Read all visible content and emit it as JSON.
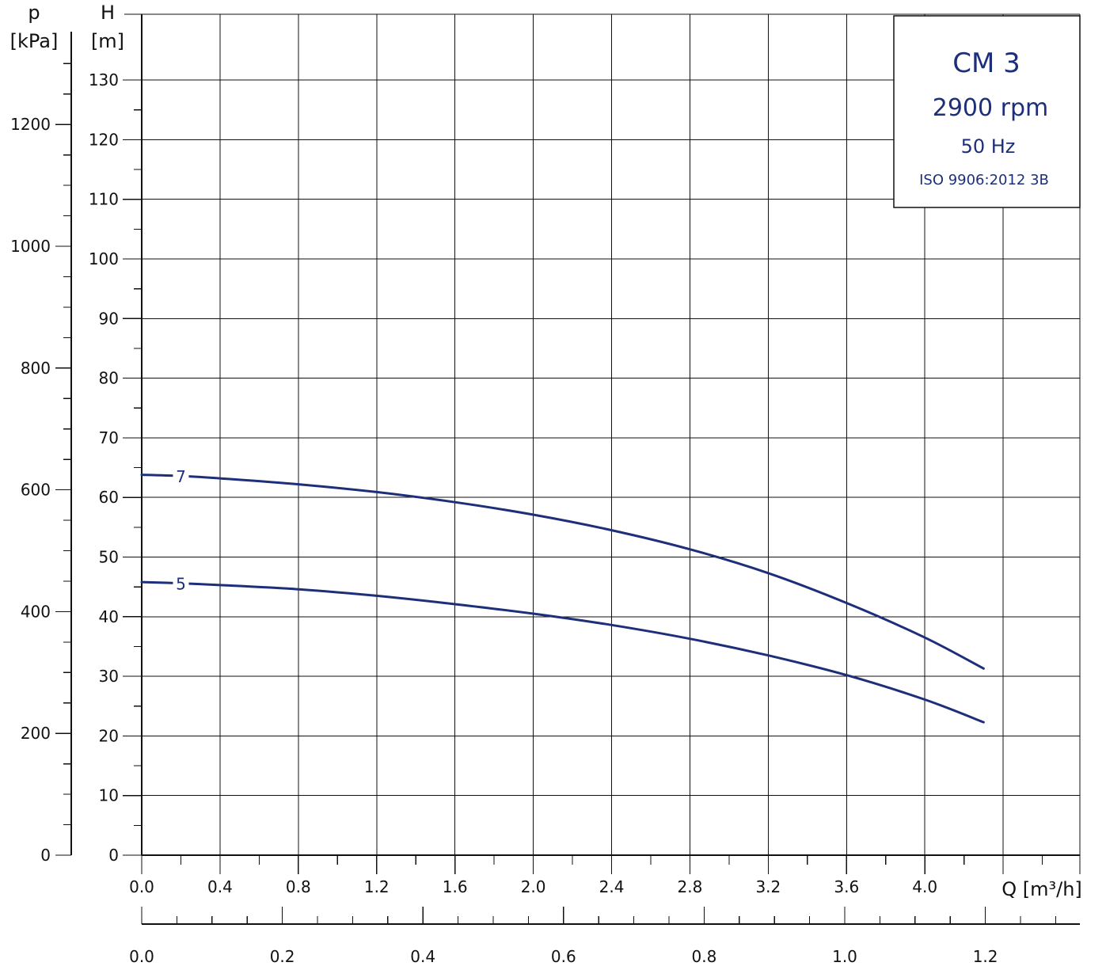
{
  "chart_data": {
    "type": "line",
    "pressure_axis": {
      "symbol": "p",
      "unit": "[kPa]",
      "ticks": [
        "0",
        "200",
        "400",
        "600",
        "800",
        "1000",
        "1200"
      ],
      "range": [
        0,
        1300
      ]
    },
    "head_axis": {
      "symbol": "H",
      "unit": "[m]",
      "ticks": [
        "0",
        "10",
        "20",
        "30",
        "40",
        "50",
        "60",
        "70",
        "80",
        "90",
        "100",
        "110",
        "120",
        "130"
      ],
      "range": [
        0,
        135
      ]
    },
    "flow_axis": {
      "label": "Q [m³/h]",
      "ticks": [
        "0.0",
        "0.4",
        "0.8",
        "1.2",
        "1.6",
        "2.0",
        "2.4",
        "2.8",
        "3.2",
        "3.6",
        "4.0"
      ],
      "range": [
        0,
        4.8
      ]
    },
    "flow_axis_secondary": {
      "ticks": [
        "0.0",
        "0.2",
        "0.4",
        "0.6",
        "0.8",
        "1.0",
        "1.2"
      ],
      "range": [
        0,
        1.333
      ]
    },
    "series": [
      {
        "name": "7",
        "x": [
          0.0,
          0.2,
          0.4,
          0.8,
          1.2,
          1.6,
          2.0,
          2.4,
          2.8,
          3.2,
          3.6,
          4.0,
          4.3
        ],
        "y": [
          63.8,
          63.6,
          63.2,
          62.2,
          60.9,
          59.2,
          57.1,
          54.5,
          51.3,
          47.3,
          42.3,
          36.5,
          31.3
        ]
      },
      {
        "name": "5",
        "x": [
          0.0,
          0.2,
          0.4,
          0.8,
          1.2,
          1.6,
          2.0,
          2.4,
          2.8,
          3.2,
          3.6,
          4.0,
          4.3
        ],
        "y": [
          45.8,
          45.6,
          45.3,
          44.6,
          43.5,
          42.1,
          40.5,
          38.6,
          36.3,
          33.5,
          30.2,
          26.1,
          22.3
        ]
      }
    ],
    "grid": true
  },
  "info": {
    "title": "CM 3",
    "speed": "2900 rpm",
    "frequency": "50 Hz",
    "standard": "ISO 9906:2012 3B"
  },
  "colors": {
    "curve": "#1e2f7a",
    "text_accent": "#1e2f7a",
    "grid": "#111111"
  }
}
